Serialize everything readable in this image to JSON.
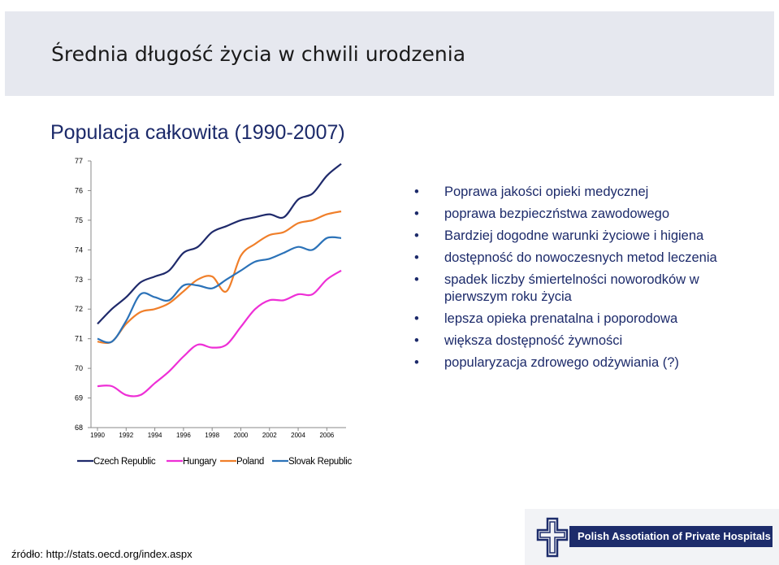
{
  "slide": {
    "title": "Średnia długość życia w chwili urodzenia",
    "subtitle": "Populacja całkowita (1990-2007)",
    "bullets": [
      "Poprawa jakości opieki medycznej",
      "poprawa bezpieczństwa zawodowego",
      "Bardziej dogodne warunki życiowe i higiena",
      "dostępność do nowoczesnych metod leczenia",
      "spadek liczby śmiertelności noworodków w pierwszym roku życia",
      "lepsza opieka prenatalna i poporodowa",
      "większa dostępność żywności",
      "popularyzacja zdrowego odżywiania (?)"
    ],
    "source": "źródło: http://stats.oecd.org/index.aspx",
    "logo_text": "Polish Assotiation of Private Hospitals",
    "logo_icon": "cross-emblem-icon"
  },
  "colors": {
    "title_bg": "#e6e8ef",
    "title_text": "#1a1a1a",
    "accent_text": "#1c2a6a",
    "logo_banner": "#1d2c6b"
  },
  "chart_data": {
    "type": "line",
    "x": [
      1990,
      1991,
      1992,
      1993,
      1994,
      1995,
      1996,
      1997,
      1998,
      1999,
      2000,
      2001,
      2002,
      2003,
      2004,
      2005,
      2006,
      2007
    ],
    "x_ticks": [
      "1990",
      "1992",
      "1994",
      "1996",
      "1998",
      "2000",
      "2002",
      "2004",
      "2006"
    ],
    "y_ticks": [
      "68",
      "69",
      "70",
      "71",
      "72",
      "73",
      "74",
      "75",
      "76",
      "77"
    ],
    "ylim": [
      68,
      77
    ],
    "grid": false,
    "legend_position": "bottom",
    "series": [
      {
        "name": "Czech Republic",
        "color": "#1f2a6b",
        "values": [
          71.5,
          72.0,
          72.4,
          72.9,
          73.1,
          73.3,
          73.9,
          74.1,
          74.6,
          74.8,
          75.0,
          75.1,
          75.2,
          75.1,
          75.7,
          75.9,
          76.5,
          76.9
        ]
      },
      {
        "name": "Hungary",
        "color": "#ee2fd6",
        "values": [
          69.4,
          69.4,
          69.1,
          69.1,
          69.5,
          69.9,
          70.4,
          70.8,
          70.7,
          70.8,
          71.4,
          72.0,
          72.3,
          72.3,
          72.5,
          72.5,
          73.0,
          73.3
        ]
      },
      {
        "name": "Poland",
        "color": "#f07f2a",
        "values": [
          70.9,
          70.9,
          71.5,
          71.9,
          72.0,
          72.2,
          72.6,
          73.0,
          73.1,
          72.6,
          73.8,
          74.2,
          74.5,
          74.6,
          74.9,
          75.0,
          75.2,
          75.3
        ]
      },
      {
        "name": "Slovak Republic",
        "color": "#2b72b8",
        "values": [
          71.0,
          70.9,
          71.6,
          72.5,
          72.4,
          72.3,
          72.8,
          72.8,
          72.7,
          73.0,
          73.3,
          73.6,
          73.7,
          73.9,
          74.1,
          74.0,
          74.4,
          74.4
        ]
      }
    ]
  }
}
